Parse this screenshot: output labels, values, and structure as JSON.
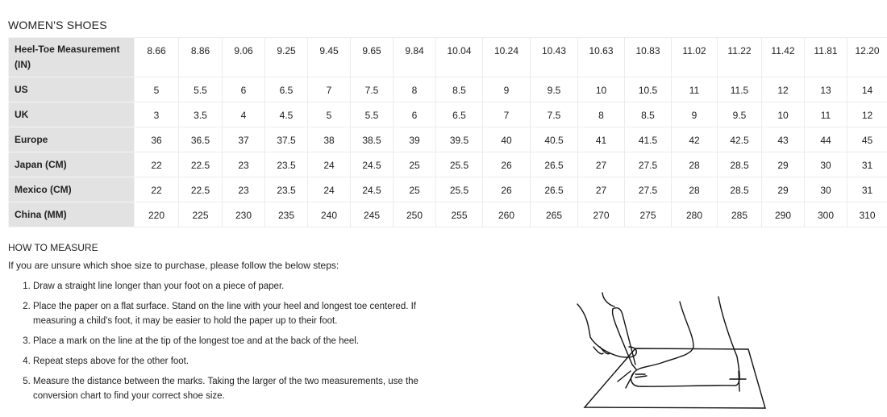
{
  "title": "WOMEN'S SHOES",
  "table": {
    "rows": [
      {
        "label": "Heel-Toe Measurement (IN)",
        "values": [
          "8.66",
          "8.86",
          "9.06",
          "9.25",
          "9.45",
          "9.65",
          "9.84",
          "10.04",
          "10.24",
          "10.43",
          "10.63",
          "10.83",
          "11.02",
          "11.22",
          "11.42",
          "11.81",
          "12.20"
        ]
      },
      {
        "label": "US",
        "values": [
          "5",
          "5.5",
          "6",
          "6.5",
          "7",
          "7.5",
          "8",
          "8.5",
          "9",
          "9.5",
          "10",
          "10.5",
          "11",
          "11.5",
          "12",
          "13",
          "14"
        ]
      },
      {
        "label": "UK",
        "values": [
          "3",
          "3.5",
          "4",
          "4.5",
          "5",
          "5.5",
          "6",
          "6.5",
          "7",
          "7.5",
          "8",
          "8.5",
          "9",
          "9.5",
          "10",
          "11",
          "12"
        ]
      },
      {
        "label": "Europe",
        "values": [
          "36",
          "36.5",
          "37",
          "37.5",
          "38",
          "38.5",
          "39",
          "39.5",
          "40",
          "40.5",
          "41",
          "41.5",
          "42",
          "42.5",
          "43",
          "44",
          "45"
        ]
      },
      {
        "label": "Japan (CM)",
        "values": [
          "22",
          "22.5",
          "23",
          "23.5",
          "24",
          "24.5",
          "25",
          "25.5",
          "26",
          "26.5",
          "27",
          "27.5",
          "28",
          "28.5",
          "29",
          "30",
          "31"
        ]
      },
      {
        "label": "Mexico (CM)",
        "values": [
          "22",
          "22.5",
          "23",
          "23.5",
          "24",
          "24.5",
          "25",
          "25.5",
          "26",
          "26.5",
          "27",
          "27.5",
          "28",
          "28.5",
          "29",
          "30",
          "31"
        ]
      },
      {
        "label": "China (MM)",
        "values": [
          "220",
          "225",
          "230",
          "235",
          "240",
          "245",
          "250",
          "255",
          "260",
          "265",
          "270",
          "275",
          "280",
          "285",
          "290",
          "300",
          "310"
        ]
      }
    ]
  },
  "how_to": {
    "heading": "HOW TO MEASURE",
    "intro": "If you are unsure which shoe size to purchase, please follow the below steps:",
    "steps": [
      "Draw a straight line longer than your foot on a piece of paper.",
      "Place the paper on a flat surface. Stand on the line with your heel and longest toe centered. If measuring a child's foot, it may be easier to hold the paper up to their foot.",
      "Place a mark on the line at the tip of the longest toe and at the back of the heel.",
      "Repeat steps above for the other foot.",
      "Measure the distance between the marks. Taking the larger of the two measurements, use the conversion chart to find your correct shoe size."
    ]
  }
}
